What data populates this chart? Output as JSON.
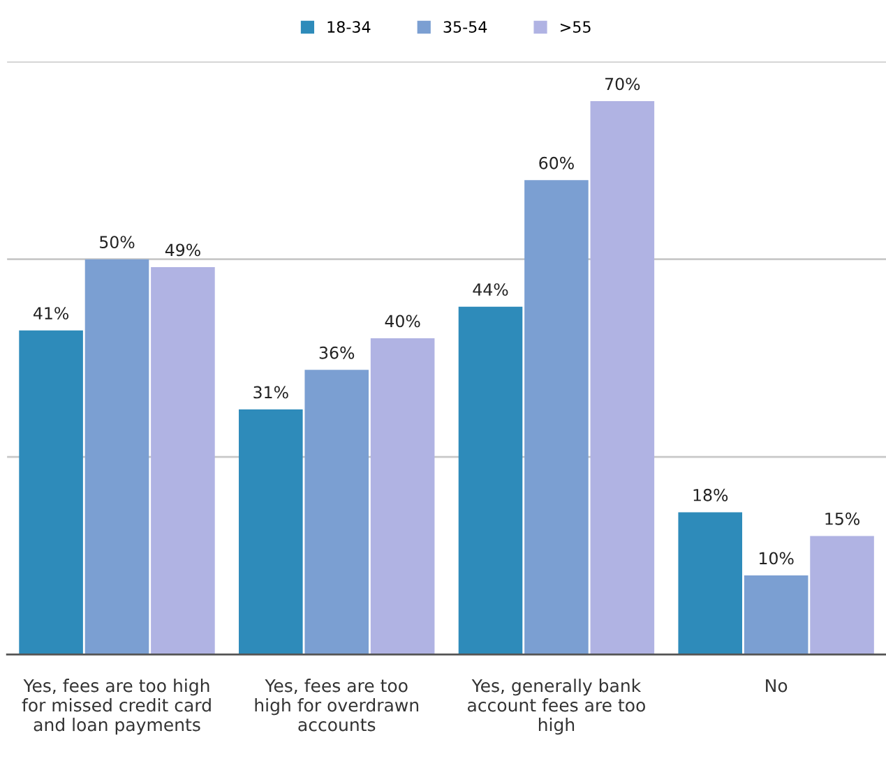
{
  "chart_data": {
    "type": "bar",
    "categories": [
      "Yes, fees are too high\nfor missed credit card\nand loan payments",
      "Yes, fees are too\nhigh for overdrawn\naccounts",
      "Yes, generally bank\naccount fees are too\nhigh",
      "No"
    ],
    "series": [
      {
        "name": "18-34",
        "color": "#2e8bba",
        "values": [
          41,
          31,
          44,
          18
        ],
        "value_labels": [
          "41%",
          "31%",
          "44%",
          "18%"
        ]
      },
      {
        "name": "35-54",
        "color": "#7b9fd2",
        "values": [
          50,
          36,
          60,
          10
        ],
        "value_labels": [
          "50%",
          "36%",
          "60%",
          "10%"
        ]
      },
      {
        "name": ">55",
        "color": "#b0b3e3",
        "values": [
          49,
          40,
          70,
          15
        ],
        "value_labels": [
          "49%",
          "40%",
          "70%",
          "15%"
        ]
      }
    ],
    "ylim": [
      0,
      75
    ],
    "ref_lines": [
      {
        "axis": "y",
        "value": 25,
        "color": "#c8c8c8"
      },
      {
        "axis": "y",
        "value": 50,
        "color": "#c8c8c8"
      },
      {
        "axis": "y",
        "value": 75,
        "color": "#c8c8c8"
      }
    ],
    "legend": "top",
    "tick_labels": "x"
  }
}
